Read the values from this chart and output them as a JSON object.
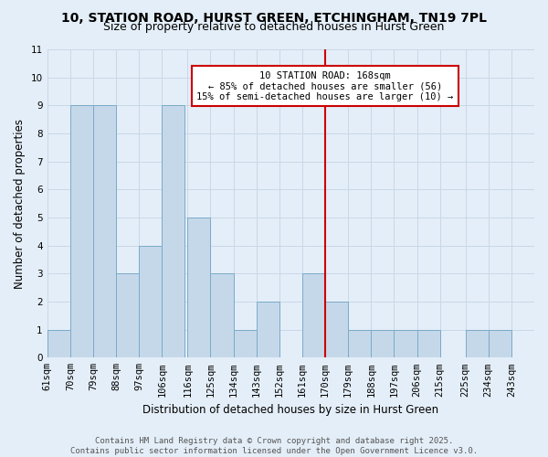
{
  "title_line1": "10, STATION ROAD, HURST GREEN, ETCHINGHAM, TN19 7PL",
  "title_line2": "Size of property relative to detached houses in Hurst Green",
  "xlabel": "Distribution of detached houses by size in Hurst Green",
  "ylabel": "Number of detached properties",
  "bin_labels": [
    "61sqm",
    "70sqm",
    "79sqm",
    "88sqm",
    "97sqm",
    "106sqm",
    "116sqm",
    "125sqm",
    "134sqm",
    "143sqm",
    "152sqm",
    "161sqm",
    "170sqm",
    "179sqm",
    "188sqm",
    "197sqm",
    "206sqm",
    "215sqm",
    "225sqm",
    "234sqm",
    "243sqm"
  ],
  "bin_left_edges": [
    61,
    70,
    79,
    88,
    97,
    106,
    116,
    125,
    134,
    143,
    152,
    161,
    170,
    179,
    188,
    197,
    206,
    215,
    225,
    234
  ],
  "bar_heights": [
    1,
    9,
    9,
    3,
    4,
    9,
    5,
    3,
    1,
    2,
    0,
    3,
    2,
    1,
    1,
    1,
    1,
    0,
    1,
    1
  ],
  "bar_color": "#c5d8ea",
  "bar_edge_color": "#7aaac8",
  "grid_color": "#c8d8e8",
  "background_color": "#e4eef8",
  "vline_x": 170,
  "vline_color": "#cc0000",
  "annotation_line1": "10 STATION ROAD: 168sqm",
  "annotation_line2": "← 85% of detached houses are smaller (56)",
  "annotation_line3": "15% of semi-detached houses are larger (10) →",
  "annotation_box_color": "#cc0000",
  "ylim": [
    0,
    11
  ],
  "yticks": [
    0,
    1,
    2,
    3,
    4,
    5,
    6,
    7,
    8,
    9,
    10,
    11
  ],
  "footer_line1": "Contains HM Land Registry data © Crown copyright and database right 2025.",
  "footer_line2": "Contains public sector information licensed under the Open Government Licence v3.0.",
  "title_fontsize": 10,
  "subtitle_fontsize": 9,
  "axis_label_fontsize": 8.5,
  "tick_fontsize": 7.5,
  "annotation_fontsize": 7.5,
  "footer_fontsize": 6.5
}
